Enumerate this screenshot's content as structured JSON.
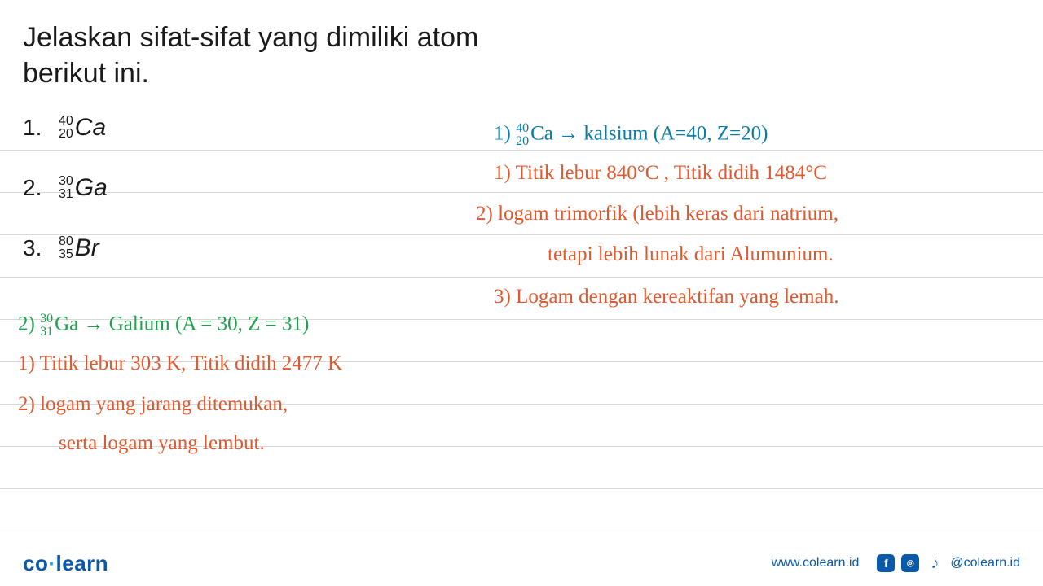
{
  "title_line1": "Jelaskan sifat-sifat yang dimiliki atom",
  "title_line2": "berikut ini.",
  "printed_items": [
    {
      "n": "1.",
      "mass": "40",
      "atomic": "20",
      "sym": "Ca"
    },
    {
      "n": "2.",
      "mass": "30",
      "atomic": "31",
      "sym": "Ga"
    },
    {
      "n": "3.",
      "mass": "80",
      "atomic": "35",
      "sym": "Br"
    }
  ],
  "hand": {
    "r1": {
      "pre": "1)",
      "mass": "40",
      "atomic": "20",
      "sym": "Ca",
      "arrow": "→",
      "rest": "kalsium (A=40, Z=20)"
    },
    "r2": "1) Titik lebur 840°C , Titik didih 1484°C",
    "r3": "2) logam trimorfik (lebih keras dari natrium,",
    "r4": "tetapi lebih lunak dari Alumunium.",
    "r5": "3) Logam dengan kereaktifan yang lemah.",
    "l1": {
      "pre": "2)",
      "mass": "30",
      "atomic": "31",
      "sym": "Ga",
      "arrow": "→",
      "rest": "Galium (A = 30, Z = 31)"
    },
    "l2": "1) Titik lebur 303 K, Titik didih 2477 K",
    "l3": "2) logam yang jarang ditemukan,",
    "l4": "serta logam yang lembut."
  },
  "rule_positions": [
    50,
    102,
    154,
    206,
    258,
    310,
    362,
    414,
    466,
    518
  ],
  "footer": {
    "brand_a": "co",
    "brand_dot": "·",
    "brand_b": "learn",
    "url": "www.colearn.id",
    "handle": "@colearn.id",
    "icons": {
      "fb": "f",
      "ig": "⌾",
      "tt": "♪"
    }
  },
  "colors": {
    "text": "#1a1a1a",
    "rule": "#d8d8d8",
    "blue_hand": "#0a7da8",
    "orange_hand": "#e0592e",
    "green_hand": "#1fa04c",
    "brand": "#0a5aa8"
  }
}
